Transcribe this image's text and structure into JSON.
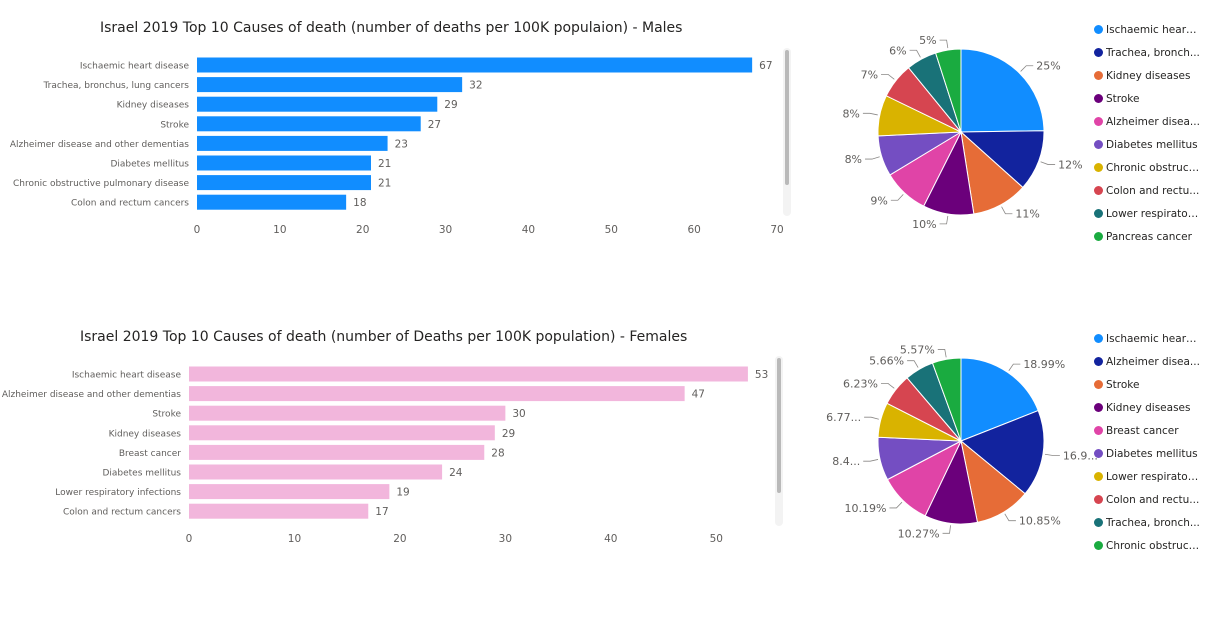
{
  "colors": {
    "male_bar": "#118DFF",
    "female_bar": "#F2B6DC",
    "pie_palette": [
      "#118DFF",
      "#12239E",
      "#E66C37",
      "#6B007B",
      "#E044A7",
      "#744EC2",
      "#D9B300",
      "#D64550",
      "#197278",
      "#1AAB40"
    ]
  },
  "chart_data": [
    {
      "type": "bar",
      "orientation": "horizontal",
      "title": "Israel 2019 Top 10 Causes of death (number of deaths per 100K populaion) - Males",
      "categories": [
        "Ischaemic heart disease",
        "Trachea, bronchus, lung cancers",
        "Kidney diseases",
        "Stroke",
        "Alzheimer disease and other dementias",
        "Diabetes mellitus",
        "Chronic obstructive pulmonary disease",
        "Colon and rectum cancers"
      ],
      "values": [
        67,
        32,
        29,
        27,
        23,
        21,
        21,
        18
      ],
      "xlim": [
        0,
        70
      ],
      "xticks": [
        0,
        10,
        20,
        30,
        40,
        50,
        60,
        70
      ],
      "data_labels": true,
      "grid": false
    },
    {
      "type": "pie",
      "legend_position": "right",
      "legend": [
        "Ischaemic heart ...",
        "Trachea, bronch...",
        "Kidney diseases",
        "Stroke",
        "Alzheimer disea...",
        "Diabetes mellitus",
        "Chronic obstruct...",
        "Colon and rectu...",
        "Lower respirator...",
        "Pancreas cancer"
      ],
      "values": [
        25,
        12,
        11,
        10,
        9,
        8,
        8,
        7,
        6,
        5
      ],
      "labels": [
        "25%",
        "12%",
        "11%",
        "10%",
        "9%",
        "8%",
        "8%",
        "7%",
        "6%",
        "5%"
      ]
    },
    {
      "type": "bar",
      "orientation": "horizontal",
      "title": "Israel 2019 Top 10 Causes of death (number of Deaths per 100K population) - Females",
      "categories": [
        "Ischaemic heart disease",
        "Alzheimer disease and other dementias",
        "Stroke",
        "Kidney diseases",
        "Breast cancer",
        "Diabetes mellitus",
        "Lower respiratory infections",
        "Colon and rectum cancers"
      ],
      "values": [
        53,
        47,
        30,
        29,
        28,
        24,
        19,
        17
      ],
      "xlim": [
        0,
        55
      ],
      "xticks": [
        0,
        10,
        20,
        30,
        40,
        50
      ],
      "data_labels": true,
      "grid": false
    },
    {
      "type": "pie",
      "legend_position": "right",
      "legend": [
        "Ischaemic heart ...",
        "Alzheimer disea...",
        "Stroke",
        "Kidney diseases",
        "Breast cancer",
        "Diabetes mellitus",
        "Lower respirator...",
        "Colon and rectu...",
        "Trachea, bronch...",
        "Chronic obstruct..."
      ],
      "values": [
        18.99,
        16.9,
        10.85,
        10.27,
        10.19,
        8.4,
        6.77,
        6.23,
        5.66,
        5.57
      ],
      "labels": [
        "18.99%",
        "16.9...",
        "10.85%",
        "10.27%",
        "10.19%",
        "8.4...",
        "6.77...",
        "6.23%",
        "5.66%",
        "5.57%"
      ]
    }
  ]
}
